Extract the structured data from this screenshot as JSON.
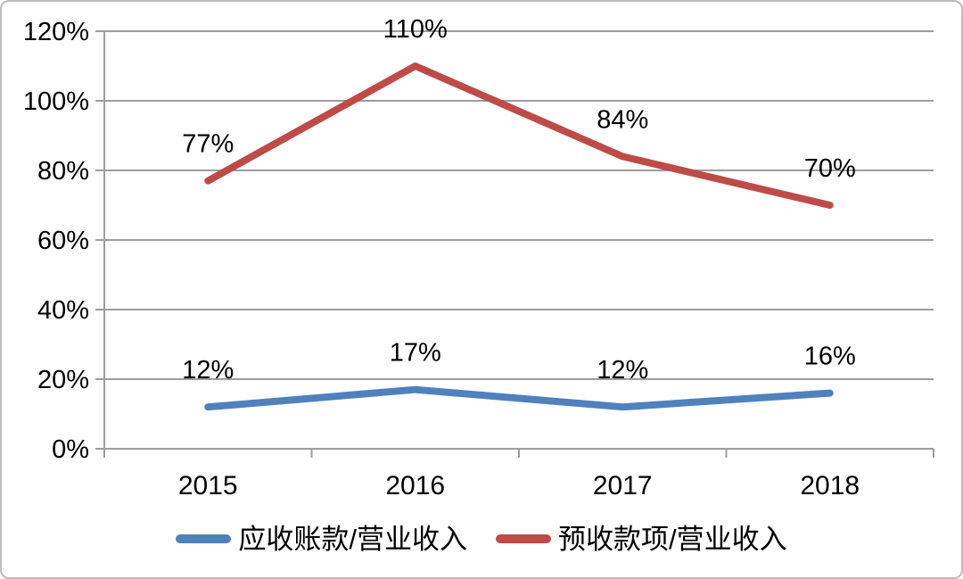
{
  "chart": {
    "background": "#ffffff",
    "frame_border_color": "#bdbdbd"
  },
  "chart_data": {
    "type": "line",
    "categories": [
      "2015",
      "2016",
      "2017",
      "2018"
    ],
    "series": [
      {
        "name": "应收账款/营业收入",
        "color": "#4F81BD",
        "values": [
          12,
          17,
          12,
          16
        ],
        "point_labels": [
          "12%",
          "17%",
          "12%",
          "16%"
        ]
      },
      {
        "name": "预收款项/营业收入",
        "color": "#BE4B48",
        "values": [
          77,
          110,
          84,
          70
        ],
        "point_labels": [
          "77%",
          "110%",
          "84%",
          "70%"
        ]
      }
    ],
    "ylim": [
      0,
      120
    ],
    "ytick_step": 20,
    "ytick_labels": [
      "0%",
      "20%",
      "40%",
      "60%",
      "80%",
      "100%",
      "120%"
    ],
    "grid": true,
    "grid_color": "#9d9d9d",
    "axis_color": "#9d9d9d",
    "text_color": "#000000",
    "legend_position": "bottom"
  }
}
